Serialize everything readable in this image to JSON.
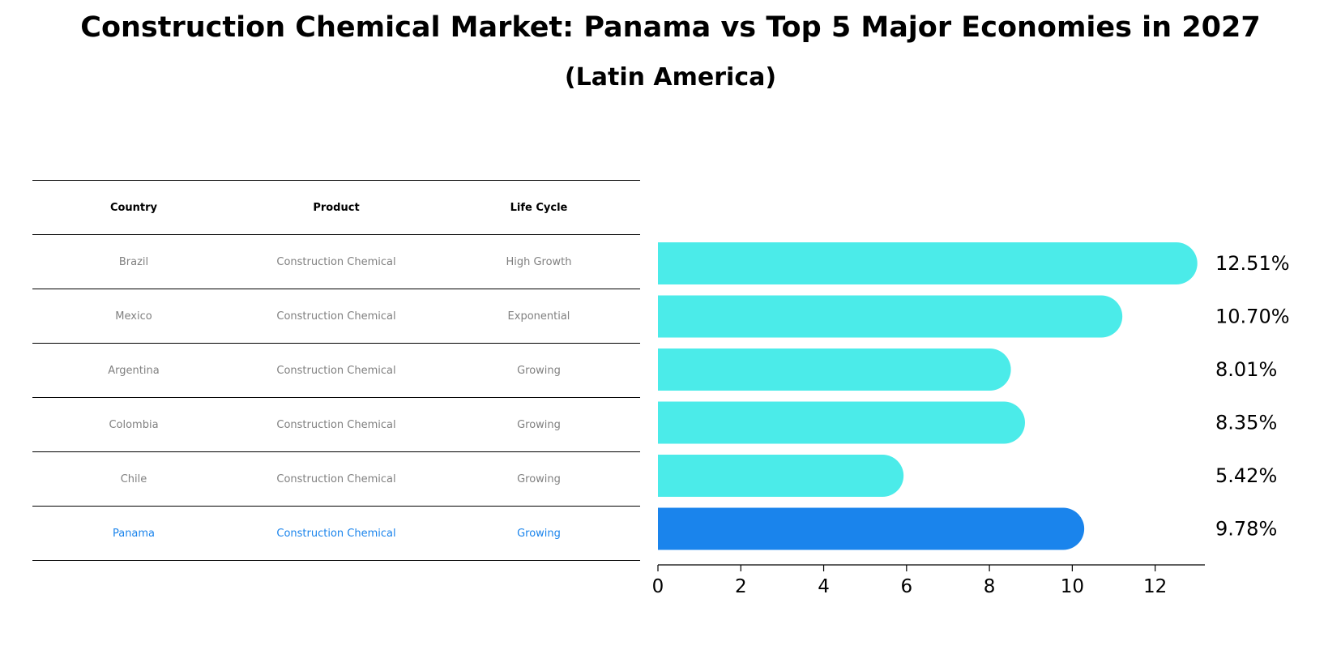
{
  "chart_data": {
    "type": "bar",
    "orientation": "horizontal",
    "title": "Construction Chemical Market: Panama vs Top 5 Major Economies in 2027",
    "subtitle": "(Latin America)",
    "categories": [
      "Brazil",
      "Mexico",
      "Argentina",
      "Colombia",
      "Chile",
      "Panama"
    ],
    "values": [
      12.51,
      10.7,
      8.01,
      8.35,
      5.42,
      9.78
    ],
    "value_labels": [
      "12.51%",
      "10.70%",
      "8.01%",
      "8.35%",
      "5.42%",
      "9.78%"
    ],
    "highlight": "Panama",
    "xlim": [
      0,
      13.2
    ],
    "xticks": [
      0,
      2,
      4,
      6,
      8,
      10,
      12
    ],
    "xlabel": "",
    "ylabel": "",
    "colors": {
      "default": "#4bebe9",
      "highlight": "#1a84ec"
    }
  },
  "table": {
    "headers": [
      "Country",
      "Product",
      "Life Cycle"
    ],
    "rows": [
      [
        "Brazil",
        "Construction Chemical",
        "High Growth"
      ],
      [
        "Mexico",
        "Construction Chemical",
        "Exponential"
      ],
      [
        "Argentina",
        "Construction Chemical",
        "Growing"
      ],
      [
        "Colombia",
        "Construction Chemical",
        "Growing"
      ],
      [
        "Chile",
        "Construction Chemical",
        "Growing"
      ],
      [
        "Panama",
        "Construction Chemical",
        "Growing"
      ]
    ],
    "highlight_color": "#1a84ec"
  }
}
